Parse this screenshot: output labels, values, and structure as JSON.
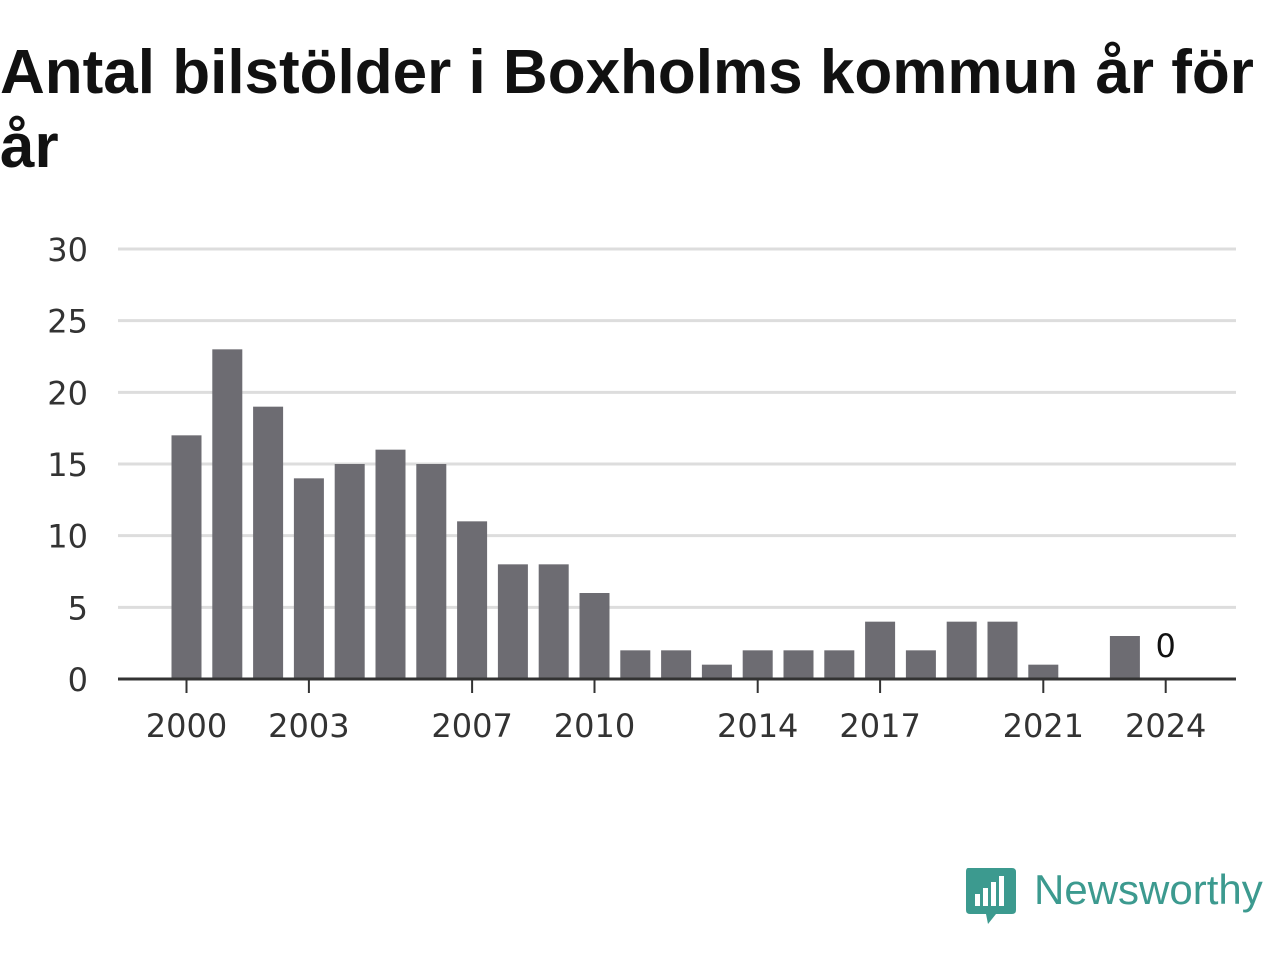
{
  "title": "Antal bilstölder i Boxholms kommun år för år",
  "colors": {
    "bar": "#6d6c72",
    "grid": "#dddddd",
    "axis": "#333333",
    "brand": "#3c9a8f"
  },
  "brand": {
    "name": "Newsworthy",
    "icon": "chat-bar-chart-icon"
  },
  "chart_data": {
    "type": "bar",
    "title": "Antal bilstölder i Boxholms kommun år för år",
    "xlabel": "",
    "ylabel": "",
    "categories": [
      "2000",
      "2001",
      "2002",
      "2003",
      "2004",
      "2005",
      "2006",
      "2007",
      "2008",
      "2009",
      "2010",
      "2011",
      "2012",
      "2013",
      "2014",
      "2015",
      "2016",
      "2017",
      "2018",
      "2019",
      "2020",
      "2021",
      "2022",
      "2023",
      "2024"
    ],
    "values": [
      17,
      23,
      19,
      14,
      15,
      16,
      15,
      11,
      8,
      8,
      6,
      2,
      2,
      1,
      2,
      2,
      2,
      4,
      2,
      4,
      4,
      1,
      0,
      3,
      0
    ],
    "ylim": [
      0,
      30
    ],
    "yticks": [
      "0",
      "5",
      "10",
      "15",
      "20",
      "25",
      "30"
    ],
    "xticks": [
      "2000",
      "2003",
      "2007",
      "2010",
      "2014",
      "2017",
      "2021",
      "2024"
    ],
    "annotations": [
      {
        "category": "2024",
        "text": "0"
      }
    ],
    "grid": true,
    "legend": "none"
  }
}
